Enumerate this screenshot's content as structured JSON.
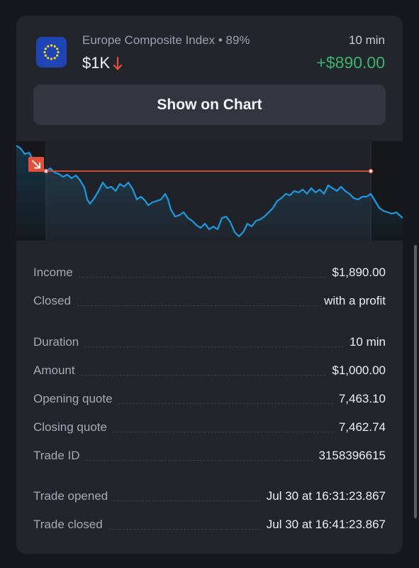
{
  "header": {
    "asset_name": "Europe Composite Index • 89%",
    "duration": "10 min",
    "amount": "$1K",
    "direction_icon": "arrow-down-icon",
    "profit": "+$890.00"
  },
  "chart_button": {
    "label": "Show on Chart"
  },
  "chart": {
    "direction_badge_icon": "arrow-down-right-icon",
    "line_color": "#1e9be0",
    "level_color": "#e0503c"
  },
  "details": {
    "rows": [
      {
        "label": "Income",
        "value": "$1,890.00"
      },
      {
        "label": "Closed",
        "value": "with a profit"
      },
      {
        "label": "Duration",
        "value": "10 min"
      },
      {
        "label": "Amount",
        "value": "$1,000.00"
      },
      {
        "label": "Opening quote",
        "value": "7,463.10"
      },
      {
        "label": "Closing quote",
        "value": "7,462.74"
      },
      {
        "label": "Trade ID",
        "value": "3158396615"
      },
      {
        "label": "Trade opened",
        "value": "Jul 30 at 16:31:23.867"
      },
      {
        "label": "Trade closed",
        "value": "Jul 30 at 16:41:23.867"
      }
    ]
  },
  "colors": {
    "profit": "#3cb46e",
    "loss": "#e0503c",
    "accent": "#1e9be0"
  }
}
